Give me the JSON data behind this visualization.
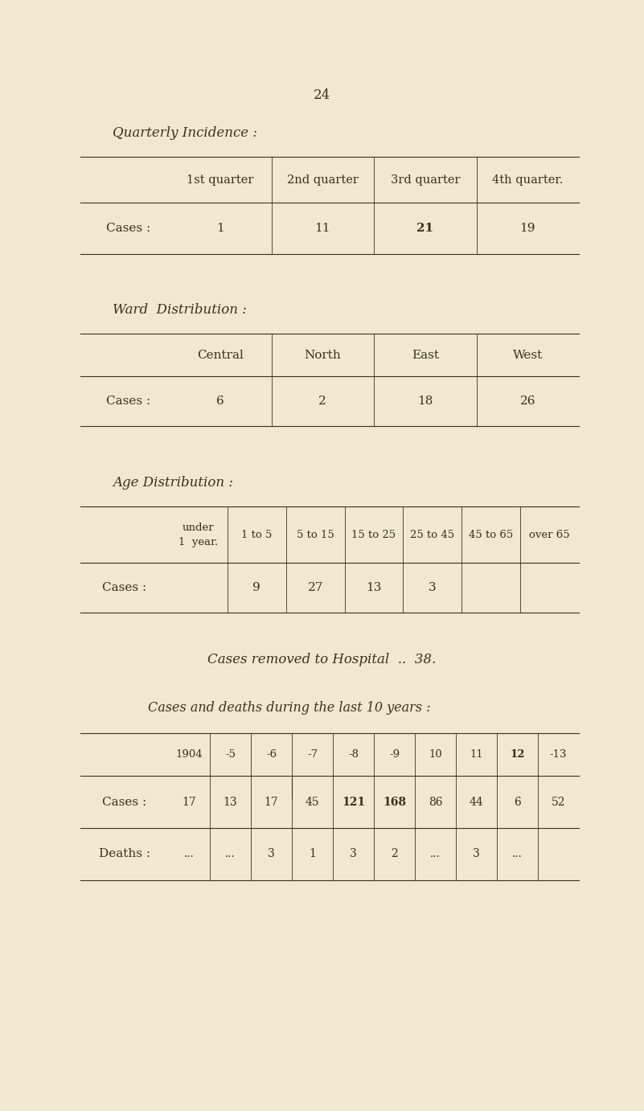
{
  "page_number": "24",
  "bg_color": "#f0e8d0",
  "text_color": "#3a3020",
  "quarterly_title": "Quarterly Incidence :",
  "quarterly_cols": [
    "1st quarter",
    "2nd quarter",
    "3rd quarter",
    "4th quarter."
  ],
  "quarterly_cases_label": "Cases :",
  "quarterly_cases_values": [
    "1",
    "11",
    "21",
    "19"
  ],
  "ward_title": "Ward  Distribution :",
  "ward_cols": [
    "Central",
    "North",
    "East",
    "West"
  ],
  "ward_cases_label": "Cases :",
  "ward_cases_values": [
    "6",
    "2",
    "18",
    "26"
  ],
  "age_title": "Age Distribution :",
  "age_cols": [
    "under\n1  year.",
    "1 to 5",
    "5 to 15",
    "15 to 25",
    "25 to 45",
    "45 to 65",
    "over 65"
  ],
  "age_cases_label": "Cases :",
  "age_cases_values": [
    "",
    "9",
    "27",
    "13",
    "3",
    "",
    ""
  ],
  "hospital_text": "Cases removed to Hospital  ..  38.",
  "last10_title": "Cases and deaths during the last 10 years :",
  "last10_cols": [
    "1904",
    "-5",
    "-6",
    "-7",
    "-8",
    "-9",
    "10",
    "11",
    "12",
    "-13"
  ],
  "last10_cases_label": "Cases :",
  "last10_cases_values": [
    "17",
    "13",
    "17",
    "45",
    "121",
    "168",
    "86",
    "44",
    "6",
    "52"
  ],
  "last10_deaths_label": "Deaths :",
  "last10_deaths_values": [
    "...",
    "...",
    "3",
    "1",
    "3",
    "2",
    "...",
    "3",
    "...",
    ""
  ]
}
